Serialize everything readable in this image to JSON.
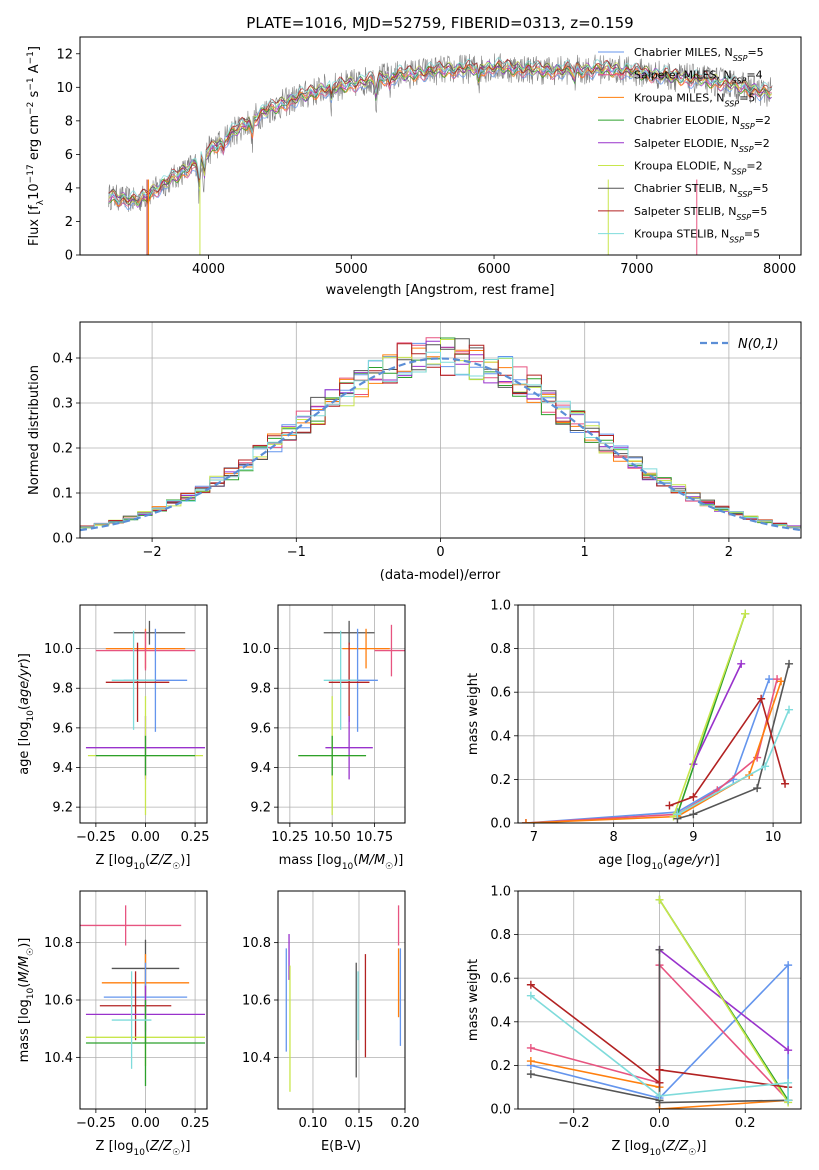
{
  "title": "PLATE=1016, MJD=52759, FIBERID=0313, z=0.159",
  "colors": {
    "chabrier_miles": "#6495ED",
    "salpeter_miles": "#E75480",
    "kroupa_miles": "#FF7F0E",
    "chabrier_elodie": "#2CA02C",
    "salpeter_elodie": "#9932CC",
    "kroupa_elodie": "#C8E64C",
    "chabrier_stelib": "#555555",
    "salpeter_stelib": "#B22222",
    "kroupa_stelib": "#7FDBDB",
    "data": "#808080",
    "gauss": "#5B8ED6"
  },
  "chart_data": [
    {
      "id": "spectrum",
      "type": "line",
      "xlabel": "wavelength [Angstrom, rest frame]",
      "ylabel": "Flux [f_λ10^-17 erg cm^-2 s^-1 A^-1]",
      "xlim": [
        3100,
        8150
      ],
      "ylim": [
        0,
        13
      ],
      "xticks": [
        4000,
        5000,
        6000,
        7000,
        8000
      ],
      "yticks": [
        0,
        2,
        4,
        6,
        8,
        10,
        12
      ],
      "legend": [
        "Chabrier MILES, N_SSP=5",
        "Salpeter MILES, N_SSP=4",
        "Kroupa MILES, N_SSP=5",
        "Chabrier ELODIE, N_SSP=2",
        "Salpeter ELODIE, N_SSP=2",
        "Kroupa ELODIE, N_SSP=2",
        "Chabrier STELIB, N_SSP=5",
        "Salpeter STELIB, N_SSP=5",
        "Kroupa STELIB, N_SSP=5"
      ],
      "continuum": {
        "x": [
          3300,
          3500,
          3700,
          3900,
          4000,
          4200,
          4400,
          4600,
          4800,
          5000,
          5300,
          5600,
          6000,
          6400,
          6800,
          7000,
          7300,
          7600,
          7900
        ],
        "y": [
          3.5,
          3.2,
          4.3,
          5.4,
          6.2,
          7.5,
          8.6,
          9.3,
          9.9,
          10.2,
          10.7,
          11.0,
          11.2,
          11.0,
          11.1,
          10.9,
          10.6,
          10.3,
          9.7
        ]
      }
    },
    {
      "id": "residuals",
      "type": "bar",
      "xlabel": "(data-model)/error",
      "ylabel": "Normed distribution",
      "xlim": [
        -2.5,
        2.5
      ],
      "ylim": [
        0,
        0.48
      ],
      "xticks": [
        -2,
        -1,
        0,
        1,
        2
      ],
      "yticks": [
        0.0,
        0.1,
        0.2,
        0.3,
        0.4
      ],
      "legend": [
        "N(0,1)"
      ]
    },
    {
      "id": "age_vs_Z",
      "type": "scatter",
      "xlabel": "Z [log10(Z/Z☉)]",
      "ylabel": "age  [log10(age/yr)]",
      "xlim": [
        -0.33,
        0.31
      ],
      "ylim": [
        9.12,
        10.22
      ],
      "xticks": [
        -0.25,
        0.0,
        0.25
      ],
      "yticks": [
        9.2,
        9.4,
        9.6,
        9.8,
        10.0
      ]
    },
    {
      "id": "age_vs_mass",
      "type": "scatter",
      "xlabel": "mass [log10(M/M☉)]",
      "xlim": [
        10.18,
        10.93
      ],
      "ylim": [
        9.12,
        10.22
      ],
      "xticks": [
        10.25,
        10.5,
        10.75
      ],
      "yticks": [
        9.2,
        9.4,
        9.6,
        9.8,
        10.0
      ]
    },
    {
      "id": "weight_vs_age",
      "type": "line",
      "xlabel": "age  [log10(age/yr)]",
      "ylabel": "mass weight",
      "xlim": [
        6.8,
        10.35
      ],
      "ylim": [
        0,
        1
      ],
      "xticks": [
        7,
        8,
        9,
        10
      ],
      "yticks": [
        0.0,
        0.2,
        0.4,
        0.6,
        0.8,
        1.0
      ]
    },
    {
      "id": "mass_vs_Z",
      "type": "scatter",
      "xlabel": "Z [log10(Z/Z☉)]",
      "ylabel": "mass [log10(M/M☉)]",
      "xlim": [
        -0.33,
        0.31
      ],
      "ylim": [
        10.22,
        10.98
      ],
      "xticks": [
        -0.25,
        0.0,
        0.25
      ],
      "yticks": [
        10.4,
        10.6,
        10.8
      ]
    },
    {
      "id": "mass_vs_ebv",
      "type": "scatter",
      "xlabel": "E(B-V)",
      "xlim": [
        0.062,
        0.2
      ],
      "ylim": [
        10.22,
        10.98
      ],
      "xticks": [
        0.1,
        0.15,
        0.2
      ],
      "yticks": [
        10.4,
        10.6,
        10.8
      ]
    },
    {
      "id": "weight_vs_Z",
      "type": "line",
      "xlabel": "Z [log10(Z/Z☉)]",
      "ylabel": "mass weight",
      "xlim": [
        -0.33,
        0.33
      ],
      "ylim": [
        0,
        1
      ],
      "xticks": [
        -0.2,
        0.0,
        0.2
      ],
      "yticks": [
        0.0,
        0.2,
        0.4,
        0.6,
        0.8,
        1.0
      ]
    }
  ]
}
